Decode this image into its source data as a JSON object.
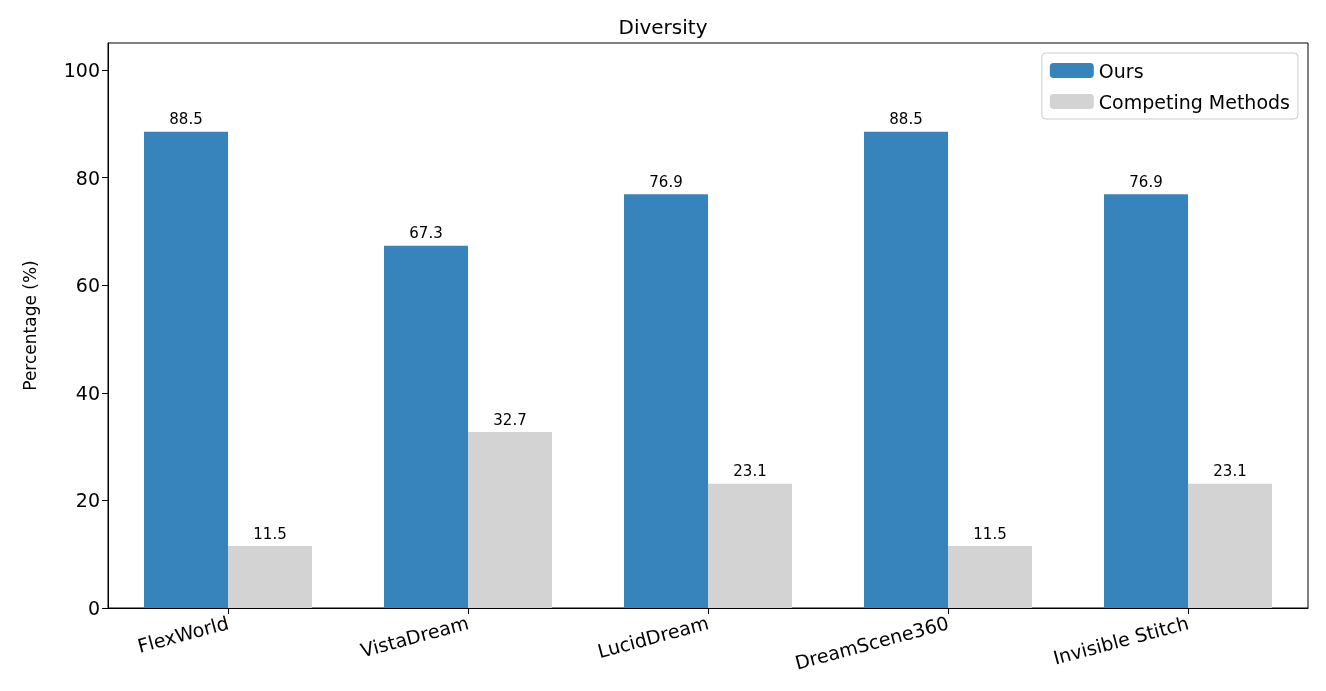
{
  "chart_data": {
    "type": "bar",
    "title": "Diversity",
    "ylabel": "Percentage (%)",
    "categories": [
      "FlexWorld",
      "VistaDream",
      "LucidDream",
      "DreamScene360",
      "Invisible Stitch"
    ],
    "series": [
      {
        "name": "Ours",
        "color": "#3783bb",
        "values": [
          88.5,
          67.3,
          76.9,
          88.5,
          76.9
        ]
      },
      {
        "name": "Competing Methods",
        "color": "#d3d3d3",
        "values": [
          11.5,
          32.7,
          23.1,
          11.5,
          23.1
        ]
      }
    ],
    "ylim": [
      0,
      105
    ],
    "yticks": [
      0,
      20,
      40,
      60,
      80,
      100
    ],
    "grid": false,
    "legend": "top right",
    "data_labels": true
  }
}
